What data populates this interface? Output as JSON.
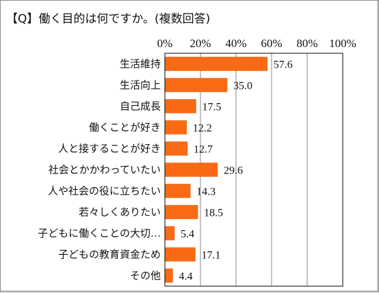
{
  "chart_data": {
    "type": "bar",
    "orientation": "horizontal",
    "title": "【Q】働く目的は何ですか。(複数回答)",
    "categories": [
      "生活維持",
      "生活向上",
      "自己成長",
      "働くことが好き",
      "人と接することが好き",
      "社会とかかわっていたい",
      "人や社会の役に立ちたい",
      "若々しくありたい",
      "子どもに働くことの大切…",
      "子どもの教育資金ため",
      "その他"
    ],
    "values": [
      57.6,
      35.0,
      17.5,
      12.2,
      12.7,
      29.6,
      14.3,
      18.5,
      5.4,
      17.1,
      4.4
    ],
    "value_labels": [
      "57.6",
      "35.0",
      "17.5",
      "12.2",
      "12.7",
      "29.6",
      "14.3",
      "18.5",
      "5.4",
      "17.1",
      "4.4"
    ],
    "x_ticks": [
      0,
      20,
      40,
      60,
      80,
      100
    ],
    "x_tick_labels": [
      "0%",
      "20%",
      "40%",
      "60%",
      "80%",
      "100%"
    ],
    "xlim": [
      0,
      100
    ],
    "xlabel": "",
    "ylabel": "",
    "axis_position": "top",
    "grid": true,
    "legend": false,
    "colors": {
      "bar": "#fa6a14",
      "bar_edge": "#e05a0a",
      "grid": "#8a8a8a",
      "axis": "#000000"
    }
  }
}
